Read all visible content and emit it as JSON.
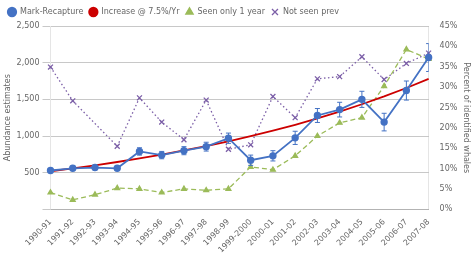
{
  "chart_data": {
    "type": "line",
    "categories": [
      "1990-91",
      "1991-92",
      "1992-93",
      "1993-94",
      "1994-95",
      "1995-96",
      "1996-97",
      "1997-98",
      "1998-99",
      "1999-2000",
      "2000-01",
      "2001-02",
      "2002-03",
      "2003-04",
      "2004-05",
      "2005-06",
      "2006-07",
      "2007-08"
    ],
    "series": [
      {
        "name": "Mark-Recapture",
        "color": "#4472C4",
        "marker": "circle",
        "line_style": "solid",
        "values": [
          530,
          560,
          570,
          560,
          790,
          740,
          800,
          855,
          970,
          670,
          730,
          975,
          1280,
          1360,
          1500,
          1190,
          1620,
          2070
        ],
        "errors": [
          30,
          30,
          30,
          30,
          50,
          50,
          55,
          60,
          70,
          70,
          70,
          90,
          95,
          100,
          110,
          120,
          130,
          190
        ]
      },
      {
        "name": "Increase @ 7.5%/Yr",
        "color": "#CC0000",
        "marker": "none",
        "line_style": "solid",
        "values": [
          520,
          559,
          601,
          646,
          695,
          747,
          803,
          863,
          928,
          998,
          1073,
          1153,
          1240,
          1333,
          1433,
          1540,
          1655,
          1780
        ]
      },
      {
        "name": "Seen only 1 year",
        "color": "#9BBB59",
        "marker": "triangle",
        "line_style": "dashed",
        "values": [
          230,
          130,
          200,
          290,
          280,
          230,
          280,
          260,
          280,
          580,
          540,
          730,
          1000,
          1180,
          1250,
          1680,
          2180,
          2050
        ]
      },
      {
        "name": "Not seen prev",
        "color": "#7B5EA7",
        "marker": "x",
        "line_style": "dotted",
        "values": [
          1940,
          1480,
          null,
          860,
          1520,
          1190,
          950,
          1490,
          820,
          880,
          1540,
          1250,
          1780,
          1810,
          2080,
          1770,
          1990,
          2130
        ]
      }
    ],
    "ylim": [
      0,
      2500
    ],
    "yticks": [
      {
        "value": 0,
        "label": " "
      },
      500,
      {
        "value": 1000,
        "label": "1,000"
      },
      {
        "value": 1500,
        "label": "1,500"
      },
      {
        "value": 2000,
        "label": "2,000"
      },
      {
        "value": 2500,
        "label": "2,500"
      }
    ],
    "y2lim": [
      0,
      45
    ],
    "y2ticks": [
      {
        "value": 0,
        "label": "0%"
      },
      {
        "value": 5,
        "label": "5%"
      },
      {
        "value": 10,
        "label": "10%"
      },
      {
        "value": 15,
        "label": "15%"
      },
      {
        "value": 20,
        "label": "20%"
      },
      {
        "value": 25,
        "label": "25%"
      },
      {
        "value": 30,
        "label": "30%"
      },
      {
        "value": 35,
        "label": "35%"
      },
      {
        "value": 40,
        "label": "40%"
      },
      {
        "value": 45,
        "label": "45%"
      }
    ],
    "ylabel": "Abundance estimates",
    "y2label": "Percent of identified whales",
    "grid": "y",
    "legend": "upper left"
  }
}
